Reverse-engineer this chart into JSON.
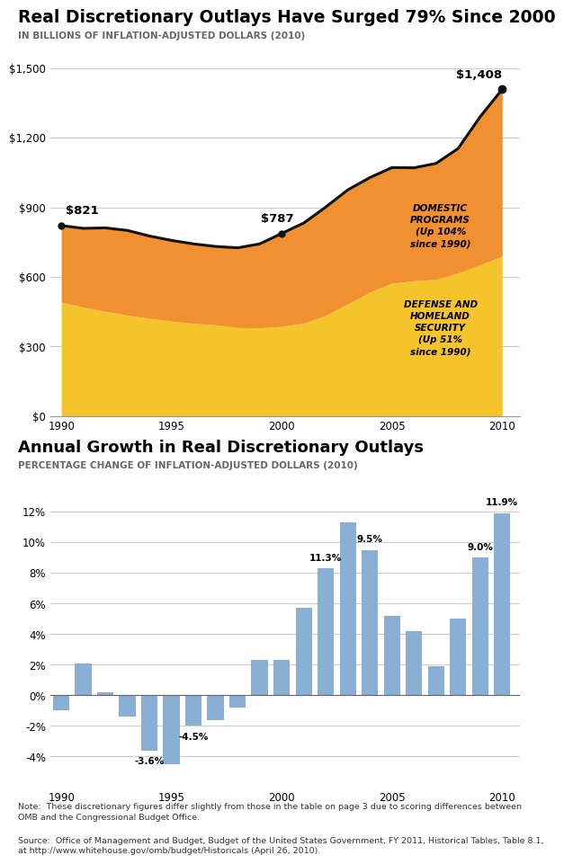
{
  "title1": "Real Discretionary Outlays Have Surged 79% Since 2000",
  "subtitle1": "IN BILLIONS OF INFLATION-ADJUSTED DOLLARS (2010)",
  "title2": "Annual Growth in Real Discretionary Outlays",
  "subtitle2": "PERCENTAGE CHANGE OF INFLATION-ADJUSTED DOLLARS (2010)",
  "area_years": [
    1990,
    1991,
    1992,
    1993,
    1994,
    1995,
    1996,
    1997,
    1998,
    1999,
    2000,
    2001,
    2002,
    2003,
    2004,
    2005,
    2006,
    2007,
    2008,
    2009,
    2010
  ],
  "defense": [
    491,
    469,
    451,
    435,
    421,
    409,
    399,
    393,
    381,
    380,
    386,
    400,
    434,
    484,
    534,
    572,
    583,
    589,
    616,
    652,
    689
  ],
  "domestic": [
    330,
    340,
    360,
    365,
    355,
    348,
    343,
    338,
    344,
    362,
    401,
    432,
    467,
    491,
    494,
    499,
    487,
    500,
    537,
    638,
    719
  ],
  "total_line": [
    821,
    809,
    811,
    800,
    776,
    757,
    742,
    731,
    725,
    742,
    787,
    832,
    901,
    975,
    1028,
    1071,
    1070,
    1089,
    1153,
    1290,
    1408
  ],
  "bar_years": [
    1990,
    1991,
    1992,
    1993,
    1994,
    1995,
    1996,
    1997,
    1998,
    1999,
    2000,
    2001,
    2002,
    2003,
    2004,
    2005,
    2006,
    2007,
    2008,
    2009,
    2010
  ],
  "bar_values": [
    -1.0,
    2.1,
    0.2,
    -1.4,
    -3.6,
    -4.5,
    -2.0,
    -1.6,
    -0.8,
    2.3,
    2.3,
    5.7,
    8.3,
    11.3,
    9.5,
    5.2,
    4.2,
    1.9,
    5.0,
    9.0,
    11.9
  ],
  "color_defense": "#F5C42A",
  "color_domestic": "#F09030",
  "color_line": "#111111",
  "color_bar": "#8aafd4",
  "note_text": "Note:  These discretionary figures differ slightly from those in the table on page 3 due to scoring differences between\nOMB and the Congressional Budget Office.",
  "source_text": "Source:  Office of Management and Budget, Budget of the United States Government, FY 2011, Historical Tables, Table 8.1,\nat http://www.whitehouse.gov/omb/budget/Historicals (April 26, 2010)."
}
